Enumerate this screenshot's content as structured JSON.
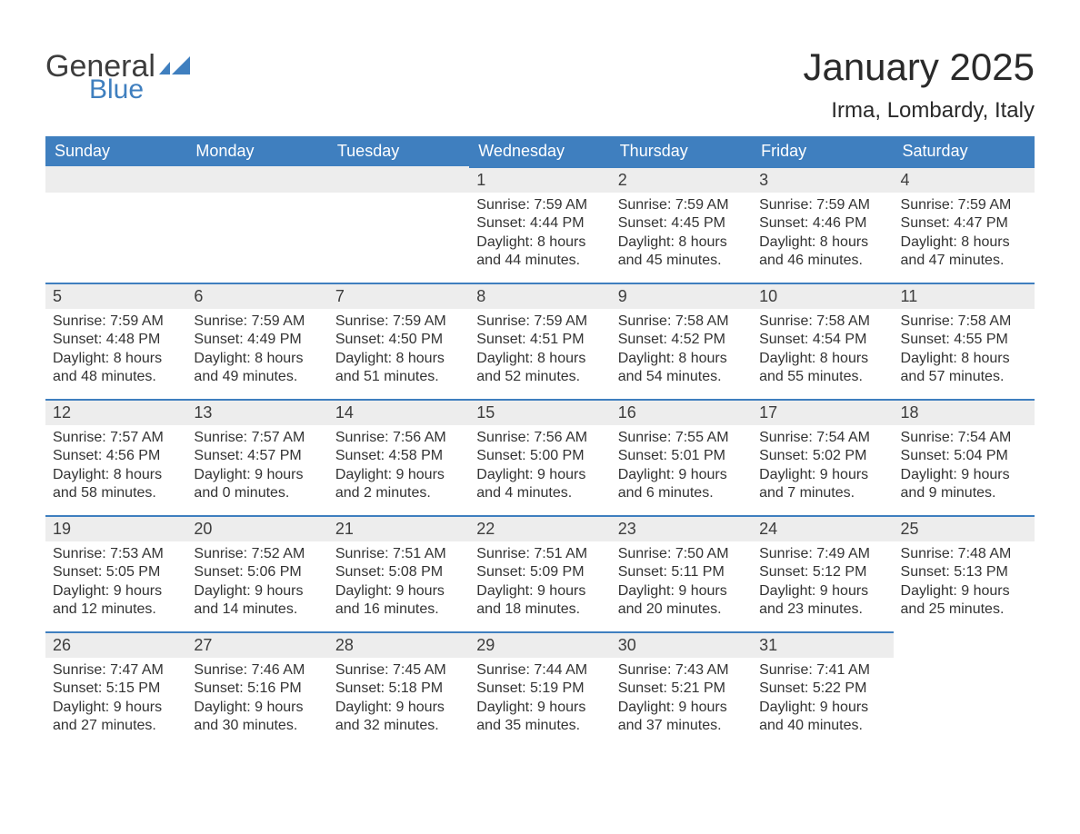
{
  "brand": {
    "word1": "General",
    "word2": "Blue",
    "flag_color": "#3f7fbf"
  },
  "title": "January 2025",
  "location": "Irma, Lombardy, Italy",
  "colors": {
    "header_bg": "#3f7fbf",
    "header_text": "#ffffff",
    "daynum_bg": "#ededed",
    "daynum_border": "#3f7fbf",
    "body_text": "#333333",
    "page_bg": "#ffffff"
  },
  "typography": {
    "title_fontsize": 42,
    "location_fontsize": 24,
    "dow_fontsize": 18,
    "daynum_fontsize": 18,
    "body_fontsize": 16,
    "font_family": "Arial"
  },
  "days_of_week": [
    "Sunday",
    "Monday",
    "Tuesday",
    "Wednesday",
    "Thursday",
    "Friday",
    "Saturday"
  ],
  "weeks": [
    [
      {
        "blank": true
      },
      {
        "blank": true
      },
      {
        "blank": true
      },
      {
        "day": "1",
        "sunrise": "Sunrise: 7:59 AM",
        "sunset": "Sunset: 4:44 PM",
        "daylight1": "Daylight: 8 hours",
        "daylight2": "and 44 minutes."
      },
      {
        "day": "2",
        "sunrise": "Sunrise: 7:59 AM",
        "sunset": "Sunset: 4:45 PM",
        "daylight1": "Daylight: 8 hours",
        "daylight2": "and 45 minutes."
      },
      {
        "day": "3",
        "sunrise": "Sunrise: 7:59 AM",
        "sunset": "Sunset: 4:46 PM",
        "daylight1": "Daylight: 8 hours",
        "daylight2": "and 46 minutes."
      },
      {
        "day": "4",
        "sunrise": "Sunrise: 7:59 AM",
        "sunset": "Sunset: 4:47 PM",
        "daylight1": "Daylight: 8 hours",
        "daylight2": "and 47 minutes."
      }
    ],
    [
      {
        "day": "5",
        "sunrise": "Sunrise: 7:59 AM",
        "sunset": "Sunset: 4:48 PM",
        "daylight1": "Daylight: 8 hours",
        "daylight2": "and 48 minutes."
      },
      {
        "day": "6",
        "sunrise": "Sunrise: 7:59 AM",
        "sunset": "Sunset: 4:49 PM",
        "daylight1": "Daylight: 8 hours",
        "daylight2": "and 49 minutes."
      },
      {
        "day": "7",
        "sunrise": "Sunrise: 7:59 AM",
        "sunset": "Sunset: 4:50 PM",
        "daylight1": "Daylight: 8 hours",
        "daylight2": "and 51 minutes."
      },
      {
        "day": "8",
        "sunrise": "Sunrise: 7:59 AM",
        "sunset": "Sunset: 4:51 PM",
        "daylight1": "Daylight: 8 hours",
        "daylight2": "and 52 minutes."
      },
      {
        "day": "9",
        "sunrise": "Sunrise: 7:58 AM",
        "sunset": "Sunset: 4:52 PM",
        "daylight1": "Daylight: 8 hours",
        "daylight2": "and 54 minutes."
      },
      {
        "day": "10",
        "sunrise": "Sunrise: 7:58 AM",
        "sunset": "Sunset: 4:54 PM",
        "daylight1": "Daylight: 8 hours",
        "daylight2": "and 55 minutes."
      },
      {
        "day": "11",
        "sunrise": "Sunrise: 7:58 AM",
        "sunset": "Sunset: 4:55 PM",
        "daylight1": "Daylight: 8 hours",
        "daylight2": "and 57 minutes."
      }
    ],
    [
      {
        "day": "12",
        "sunrise": "Sunrise: 7:57 AM",
        "sunset": "Sunset: 4:56 PM",
        "daylight1": "Daylight: 8 hours",
        "daylight2": "and 58 minutes."
      },
      {
        "day": "13",
        "sunrise": "Sunrise: 7:57 AM",
        "sunset": "Sunset: 4:57 PM",
        "daylight1": "Daylight: 9 hours",
        "daylight2": "and 0 minutes."
      },
      {
        "day": "14",
        "sunrise": "Sunrise: 7:56 AM",
        "sunset": "Sunset: 4:58 PM",
        "daylight1": "Daylight: 9 hours",
        "daylight2": "and 2 minutes."
      },
      {
        "day": "15",
        "sunrise": "Sunrise: 7:56 AM",
        "sunset": "Sunset: 5:00 PM",
        "daylight1": "Daylight: 9 hours",
        "daylight2": "and 4 minutes."
      },
      {
        "day": "16",
        "sunrise": "Sunrise: 7:55 AM",
        "sunset": "Sunset: 5:01 PM",
        "daylight1": "Daylight: 9 hours",
        "daylight2": "and 6 minutes."
      },
      {
        "day": "17",
        "sunrise": "Sunrise: 7:54 AM",
        "sunset": "Sunset: 5:02 PM",
        "daylight1": "Daylight: 9 hours",
        "daylight2": "and 7 minutes."
      },
      {
        "day": "18",
        "sunrise": "Sunrise: 7:54 AM",
        "sunset": "Sunset: 5:04 PM",
        "daylight1": "Daylight: 9 hours",
        "daylight2": "and 9 minutes."
      }
    ],
    [
      {
        "day": "19",
        "sunrise": "Sunrise: 7:53 AM",
        "sunset": "Sunset: 5:05 PM",
        "daylight1": "Daylight: 9 hours",
        "daylight2": "and 12 minutes."
      },
      {
        "day": "20",
        "sunrise": "Sunrise: 7:52 AM",
        "sunset": "Sunset: 5:06 PM",
        "daylight1": "Daylight: 9 hours",
        "daylight2": "and 14 minutes."
      },
      {
        "day": "21",
        "sunrise": "Sunrise: 7:51 AM",
        "sunset": "Sunset: 5:08 PM",
        "daylight1": "Daylight: 9 hours",
        "daylight2": "and 16 minutes."
      },
      {
        "day": "22",
        "sunrise": "Sunrise: 7:51 AM",
        "sunset": "Sunset: 5:09 PM",
        "daylight1": "Daylight: 9 hours",
        "daylight2": "and 18 minutes."
      },
      {
        "day": "23",
        "sunrise": "Sunrise: 7:50 AM",
        "sunset": "Sunset: 5:11 PM",
        "daylight1": "Daylight: 9 hours",
        "daylight2": "and 20 minutes."
      },
      {
        "day": "24",
        "sunrise": "Sunrise: 7:49 AM",
        "sunset": "Sunset: 5:12 PM",
        "daylight1": "Daylight: 9 hours",
        "daylight2": "and 23 minutes."
      },
      {
        "day": "25",
        "sunrise": "Sunrise: 7:48 AM",
        "sunset": "Sunset: 5:13 PM",
        "daylight1": "Daylight: 9 hours",
        "daylight2": "and 25 minutes."
      }
    ],
    [
      {
        "day": "26",
        "sunrise": "Sunrise: 7:47 AM",
        "sunset": "Sunset: 5:15 PM",
        "daylight1": "Daylight: 9 hours",
        "daylight2": "and 27 minutes."
      },
      {
        "day": "27",
        "sunrise": "Sunrise: 7:46 AM",
        "sunset": "Sunset: 5:16 PM",
        "daylight1": "Daylight: 9 hours",
        "daylight2": "and 30 minutes."
      },
      {
        "day": "28",
        "sunrise": "Sunrise: 7:45 AM",
        "sunset": "Sunset: 5:18 PM",
        "daylight1": "Daylight: 9 hours",
        "daylight2": "and 32 minutes."
      },
      {
        "day": "29",
        "sunrise": "Sunrise: 7:44 AM",
        "sunset": "Sunset: 5:19 PM",
        "daylight1": "Daylight: 9 hours",
        "daylight2": "and 35 minutes."
      },
      {
        "day": "30",
        "sunrise": "Sunrise: 7:43 AM",
        "sunset": "Sunset: 5:21 PM",
        "daylight1": "Daylight: 9 hours",
        "daylight2": "and 37 minutes."
      },
      {
        "day": "31",
        "sunrise": "Sunrise: 7:41 AM",
        "sunset": "Sunset: 5:22 PM",
        "daylight1": "Daylight: 9 hours",
        "daylight2": "and 40 minutes."
      },
      {
        "blank": true,
        "trailing": true
      }
    ]
  ]
}
